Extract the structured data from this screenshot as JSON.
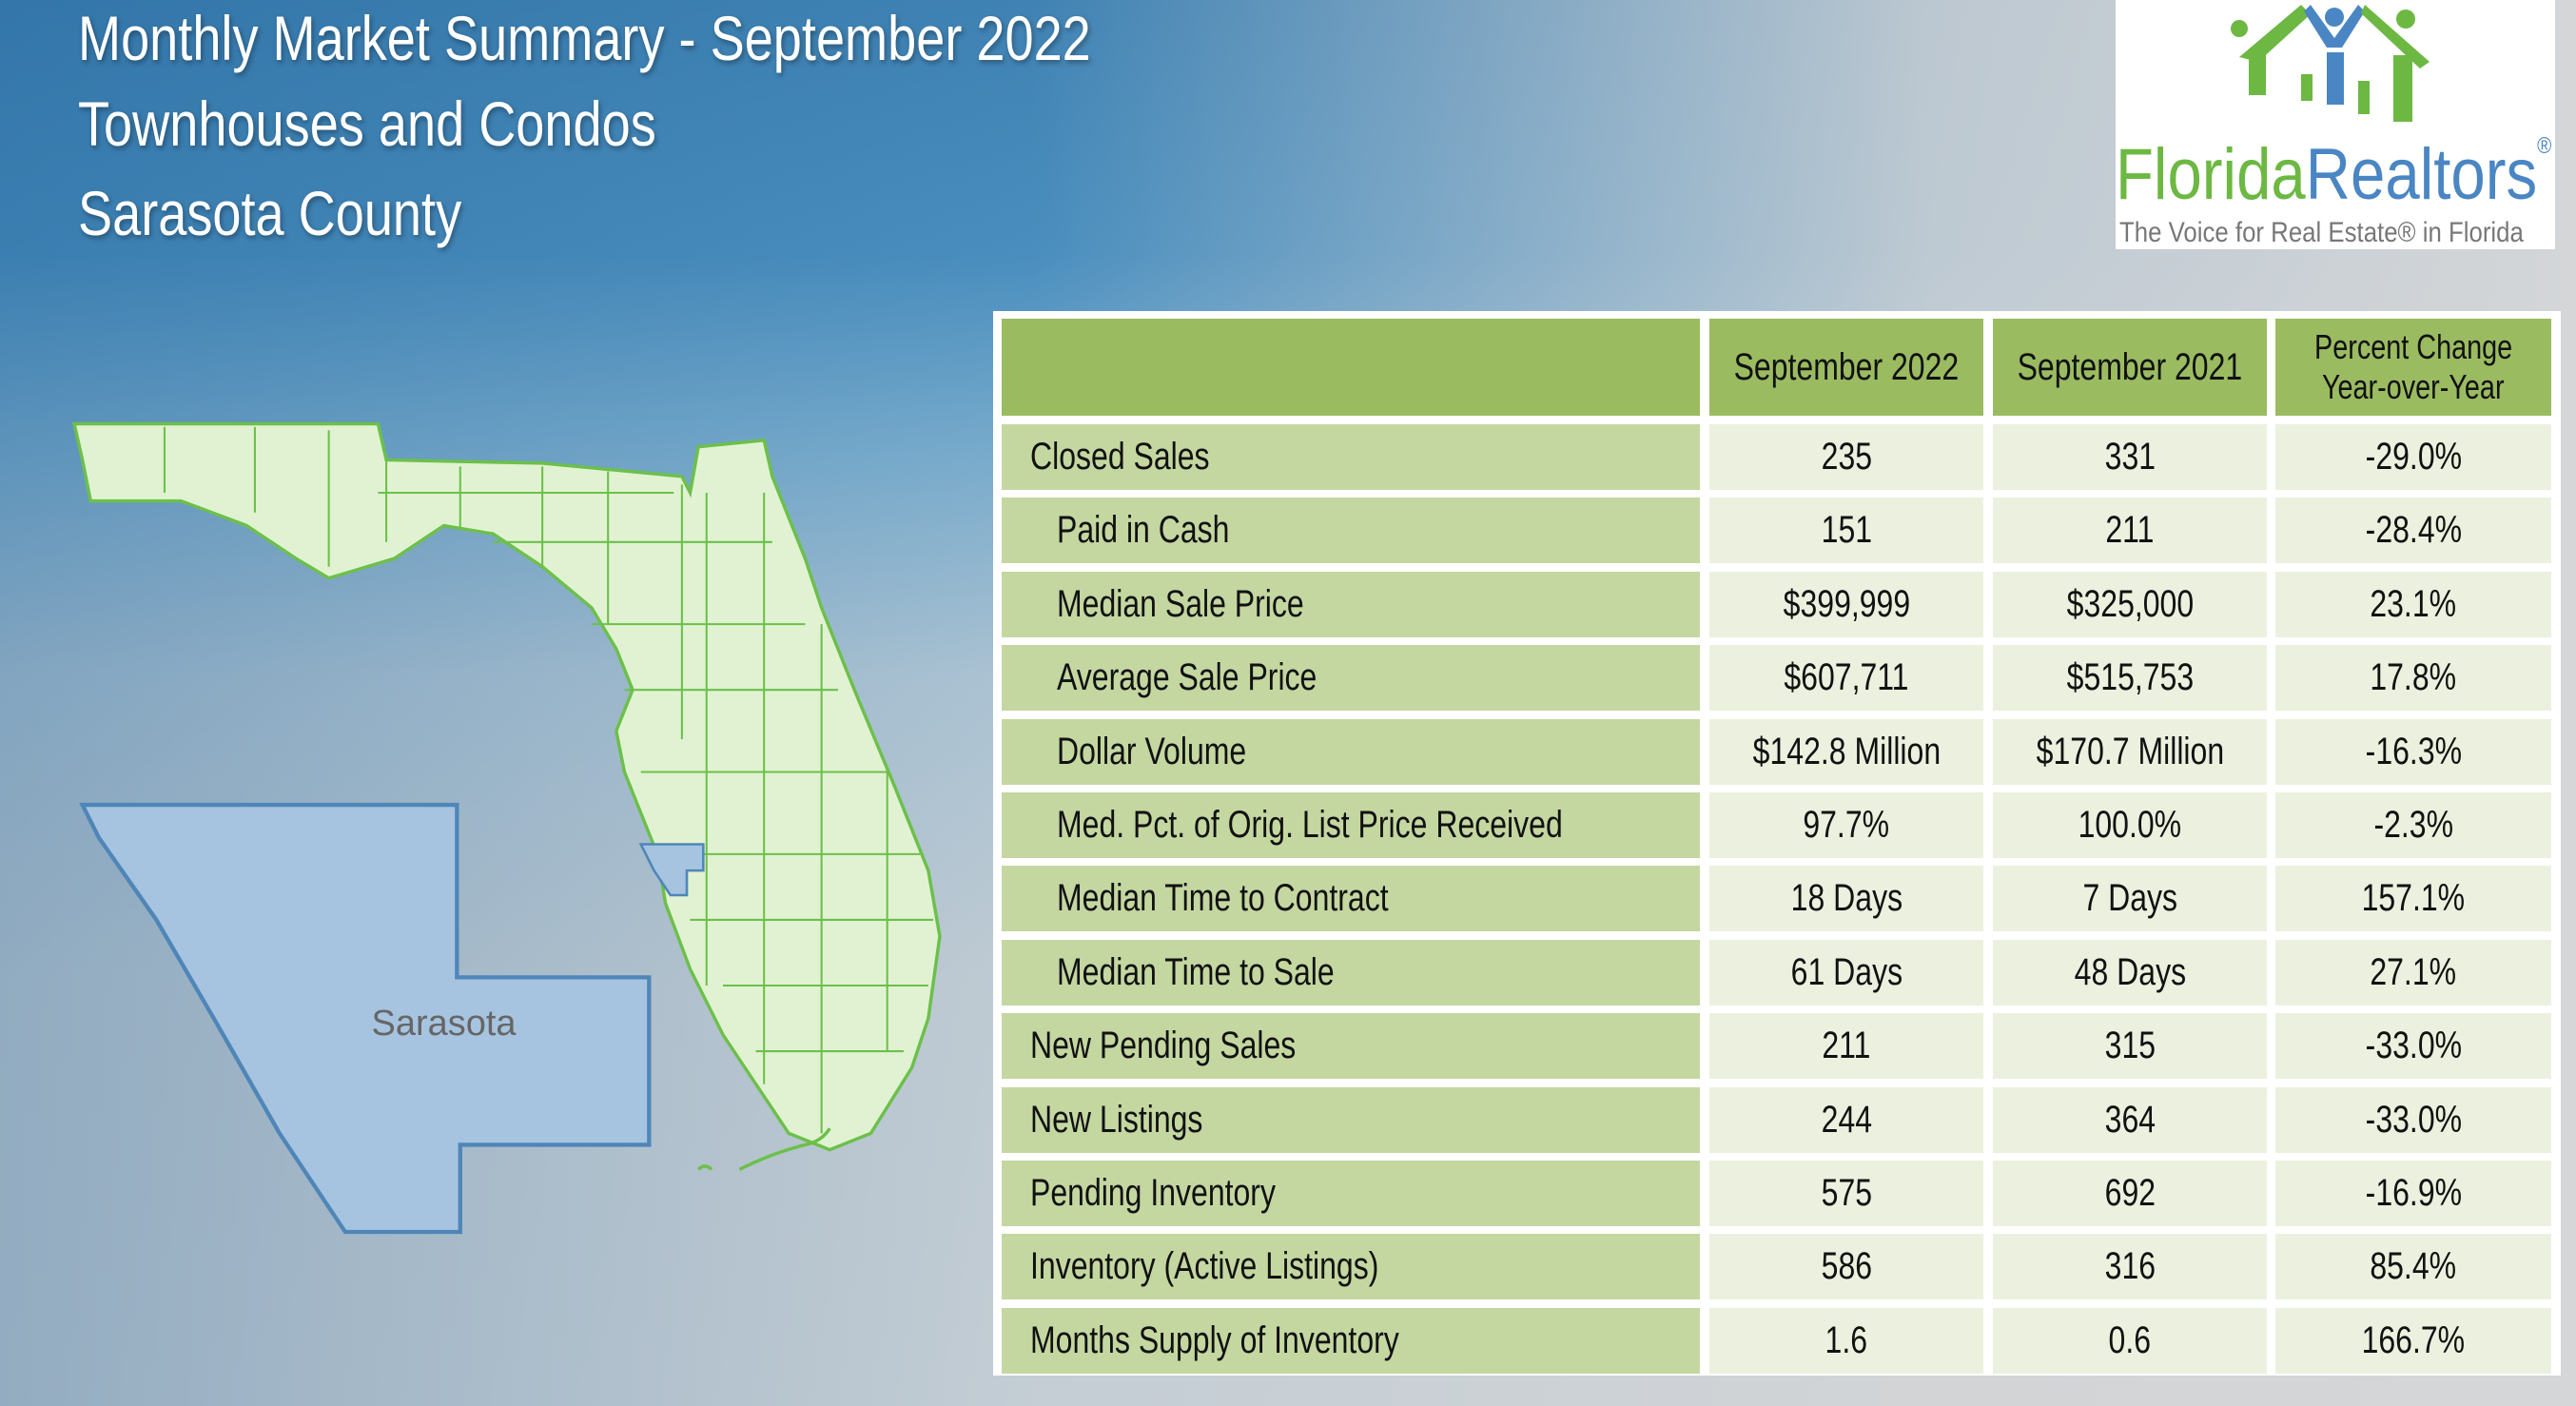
{
  "header": {
    "title": "Monthly Market Summary - September 2022",
    "subtitle": "Townhouses and Condos",
    "region": "Sarasota County"
  },
  "logo": {
    "brand_part1": "Florida",
    "brand_part2": "Realtors",
    "registered": "®",
    "tagline": "The Voice for Real Estate® in Florida"
  },
  "map": {
    "county_label": "Sarasota",
    "colors": {
      "state_fill": "#e1f2d2",
      "state_stroke": "#6cc04a",
      "county_fill": "#a6c4e0",
      "county_stroke": "#4f86b8"
    }
  },
  "table": {
    "columns": [
      "September 2022",
      "September 2021",
      "Percent Change",
      "Year-over-Year"
    ],
    "rows": [
      {
        "label": "Closed Sales",
        "indent": false,
        "cur": "235",
        "prev": "331",
        "chg": "-29.0%"
      },
      {
        "label": "Paid in Cash",
        "indent": true,
        "cur": "151",
        "prev": "211",
        "chg": "-28.4%"
      },
      {
        "label": "Median Sale Price",
        "indent": true,
        "cur": "$399,999",
        "prev": "$325,000",
        "chg": "23.1%"
      },
      {
        "label": "Average Sale Price",
        "indent": true,
        "cur": "$607,711",
        "prev": "$515,753",
        "chg": "17.8%"
      },
      {
        "label": "Dollar Volume",
        "indent": true,
        "cur": "$142.8 Million",
        "prev": "$170.7 Million",
        "chg": "-16.3%"
      },
      {
        "label": "Med. Pct. of Orig. List Price Received",
        "indent": true,
        "cur": "97.7%",
        "prev": "100.0%",
        "chg": "-2.3%"
      },
      {
        "label": "Median Time to Contract",
        "indent": true,
        "cur": "18 Days",
        "prev": "7 Days",
        "chg": "157.1%"
      },
      {
        "label": "Median Time to Sale",
        "indent": true,
        "cur": "61 Days",
        "prev": "48 Days",
        "chg": "27.1%"
      },
      {
        "label": "New Pending Sales",
        "indent": false,
        "cur": "211",
        "prev": "315",
        "chg": "-33.0%"
      },
      {
        "label": "New Listings",
        "indent": false,
        "cur": "244",
        "prev": "364",
        "chg": "-33.0%"
      },
      {
        "label": "Pending Inventory",
        "indent": false,
        "cur": "575",
        "prev": "692",
        "chg": "-16.9%"
      },
      {
        "label": "Inventory (Active Listings)",
        "indent": false,
        "cur": "586",
        "prev": "316",
        "chg": "85.4%"
      },
      {
        "label": "Months Supply of Inventory",
        "indent": false,
        "cur": "1.6",
        "prev": "0.6",
        "chg": "166.7%"
      }
    ]
  }
}
